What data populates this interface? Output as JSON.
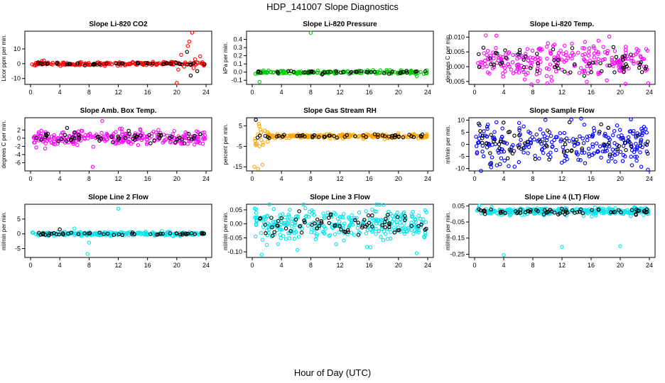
{
  "figure": {
    "title": "HDP_141007  Slope Diagnostics",
    "xlabel": "Hour of Day (UTC)"
  },
  "colors": {
    "red": "#ff0000",
    "green": "#00cc00",
    "magenta": "#ff00ff",
    "orange": "#ffa500",
    "blue": "#0000ff",
    "cyan": "#00e5ee",
    "black": "#000000"
  },
  "chart_data": [
    {
      "type": "scatter",
      "title": "Slope Li-820 CO2",
      "ylabel": "Licor ppm per min.",
      "xlim": [
        0,
        24
      ],
      "ylim": [
        -14,
        22
      ],
      "yticks": [
        "-10",
        "0",
        "10"
      ],
      "ytick_values": [
        -10,
        0,
        10
      ],
      "xticks": [
        "0",
        "4",
        "8",
        "12",
        "16",
        "20",
        "24"
      ],
      "color": "red",
      "center": 0,
      "spread": 0.6,
      "n": 200,
      "seed": 11,
      "outliers": [
        [
          20.2,
          -4
        ],
        [
          20.6,
          6
        ],
        [
          21.0,
          -2
        ],
        [
          21.4,
          8
        ],
        [
          21.7,
          15
        ],
        [
          22.1,
          21
        ],
        [
          22.5,
          3
        ],
        [
          22.8,
          -5
        ],
        [
          23.2,
          5
        ],
        [
          20.0,
          -13
        ],
        [
          21.5,
          12
        ],
        [
          21.9,
          -8
        ],
        [
          22.3,
          -3
        ],
        [
          23.5,
          1
        ]
      ]
    },
    {
      "type": "scatter",
      "title": "Slope Li-820 Pressure",
      "ylabel": "kPa per min.",
      "xlim": [
        0,
        24
      ],
      "ylim": [
        -0.15,
        0.5
      ],
      "yticks": [
        "-0.1",
        "0.0",
        "0.1",
        "0.2",
        "0.3",
        "0.4"
      ],
      "ytick_values": [
        -0.1,
        0,
        0.1,
        0.2,
        0.3,
        0.4
      ],
      "xticks": [
        "0",
        "4",
        "8",
        "12",
        "16",
        "20",
        "24"
      ],
      "color": "green",
      "center": 0.0,
      "spread": 0.01,
      "n": 200,
      "seed": 23,
      "outliers": [
        [
          8.0,
          0.48
        ],
        [
          1.0,
          -0.12
        ],
        [
          22.5,
          -0.05
        ]
      ]
    },
    {
      "type": "scatter",
      "title": "Slope Li-820 Temp.",
      "ylabel": "degrees C per min.",
      "xlim": [
        0,
        24
      ],
      "ylim": [
        -0.006,
        0.012
      ],
      "yticks": [
        "-0.005",
        "0.000",
        "0.005",
        "0.010"
      ],
      "ytick_values": [
        -0.005,
        0,
        0.005,
        0.01
      ],
      "xticks": [
        "0",
        "4",
        "8",
        "12",
        "16",
        "20",
        "24"
      ],
      "color": "magenta",
      "center": 0.0015,
      "spread": 0.003,
      "n": 260,
      "seed": 37,
      "outliers": [
        [
          3.0,
          0.0105
        ],
        [
          18.5,
          0.0102
        ]
      ]
    },
    {
      "type": "scatter",
      "title": "Slope Amb. Box Temp.",
      "ylabel": "degrees C per min.",
      "xlim": [
        0,
        24
      ],
      "ylim": [
        -8,
        5
      ],
      "yticks": [
        "-6",
        "-4",
        "-2",
        "0",
        "2"
      ],
      "ytick_values": [
        -6,
        -4,
        -2,
        0,
        2
      ],
      "xticks": [
        "0",
        "4",
        "8",
        "12",
        "16",
        "20",
        "24"
      ],
      "color": "magenta",
      "center": 0,
      "spread": 0.9,
      "n": 260,
      "seed": 41,
      "outliers": [
        [
          9.8,
          4.2
        ],
        [
          8.5,
          -7.0
        ],
        [
          2.0,
          -2.5
        ],
        [
          5.0,
          2.5
        ],
        [
          15.0,
          2.2
        ]
      ]
    },
    {
      "type": "scatter",
      "title": "Slope Gas Stream RH",
      "ylabel": "percent per min.",
      "xlim": [
        0,
        24
      ],
      "ylim": [
        -17,
        9
      ],
      "yticks": [
        "-15",
        "-5",
        "5"
      ],
      "ytick_values": [
        -15,
        -5,
        5
      ],
      "xticks": [
        "0",
        "4",
        "8",
        "12",
        "16",
        "20",
        "24"
      ],
      "color": "orange",
      "center": 0,
      "spread": 0.5,
      "n": 230,
      "seed": 53,
      "early_burst": true,
      "outliers": [
        [
          0.3,
          -15
        ],
        [
          0.8,
          -16
        ],
        [
          1.4,
          -14
        ],
        [
          0.5,
          8
        ],
        [
          0.9,
          6
        ]
      ]
    },
    {
      "type": "scatter",
      "title": "Slope Sample Flow",
      "ylabel": "ml/min per min.",
      "xlim": [
        0,
        24
      ],
      "ylim": [
        -11,
        11
      ],
      "yticks": [
        "-10",
        "-5",
        "0",
        "5",
        "10"
      ],
      "ytick_values": [
        -10,
        -5,
        0,
        5,
        10
      ],
      "xticks": [
        "0",
        "4",
        "8",
        "12",
        "16",
        "20",
        "24"
      ],
      "color": "blue",
      "center": 0,
      "spread": 4.0,
      "n": 260,
      "seed": 67,
      "outliers": [
        [
          23.8,
          -10.5
        ]
      ]
    },
    {
      "type": "scatter",
      "title": "Slope Line 2 Flow",
      "ylabel": "ml/min per min.",
      "xlim": [
        0,
        24
      ],
      "ylim": [
        -8,
        10
      ],
      "yticks": [
        "-5",
        "0",
        "5"
      ],
      "ytick_values": [
        -5,
        0,
        5
      ],
      "xticks": [
        "0",
        "4",
        "8",
        "12",
        "16",
        "20",
        "24"
      ],
      "color": "cyan",
      "center": 0,
      "spread": 0.3,
      "n": 230,
      "seed": 79,
      "outliers": [
        [
          7.8,
          -6.8
        ],
        [
          12.0,
          8.5
        ],
        [
          6.0,
          1.8
        ],
        [
          4.0,
          1.5
        ],
        [
          8.0,
          -3.0
        ]
      ]
    },
    {
      "type": "scatter",
      "title": "Slope Line 3 Flow",
      "ylabel": "ml/min per min.",
      "xlim": [
        0,
        24
      ],
      "ylim": [
        -0.12,
        0.07
      ],
      "yticks": [
        "-0.10",
        "-0.05",
        "0.00",
        "0.05"
      ],
      "ytick_values": [
        -0.1,
        -0.05,
        0,
        0.05
      ],
      "xticks": [
        "0",
        "4",
        "8",
        "12",
        "16",
        "20",
        "24"
      ],
      "color": "cyan",
      "center": 0.0,
      "spread": 0.028,
      "n": 320,
      "seed": 83,
      "outliers": [
        [
          1.3,
          -0.11
        ],
        [
          22.5,
          -0.105
        ]
      ]
    },
    {
      "type": "scatter",
      "title": "Slope Line 4 (LT) Flow",
      "ylabel": "ml/min per min.",
      "xlim": [
        0,
        24
      ],
      "ylim": [
        -0.27,
        0.06
      ],
      "yticks": [
        "-0.25",
        "-0.15",
        "-0.05",
        "0.05"
      ],
      "ytick_values": [
        -0.25,
        -0.15,
        -0.05,
        0.05
      ],
      "xticks": [
        "0",
        "4",
        "8",
        "12",
        "16",
        "20",
        "24"
      ],
      "color": "cyan",
      "center": 0.015,
      "spread": 0.012,
      "n": 300,
      "seed": 97,
      "outliers": [
        [
          4.0,
          -0.255
        ],
        [
          12.0,
          -0.205
        ],
        [
          20.0,
          -0.2
        ]
      ]
    }
  ]
}
